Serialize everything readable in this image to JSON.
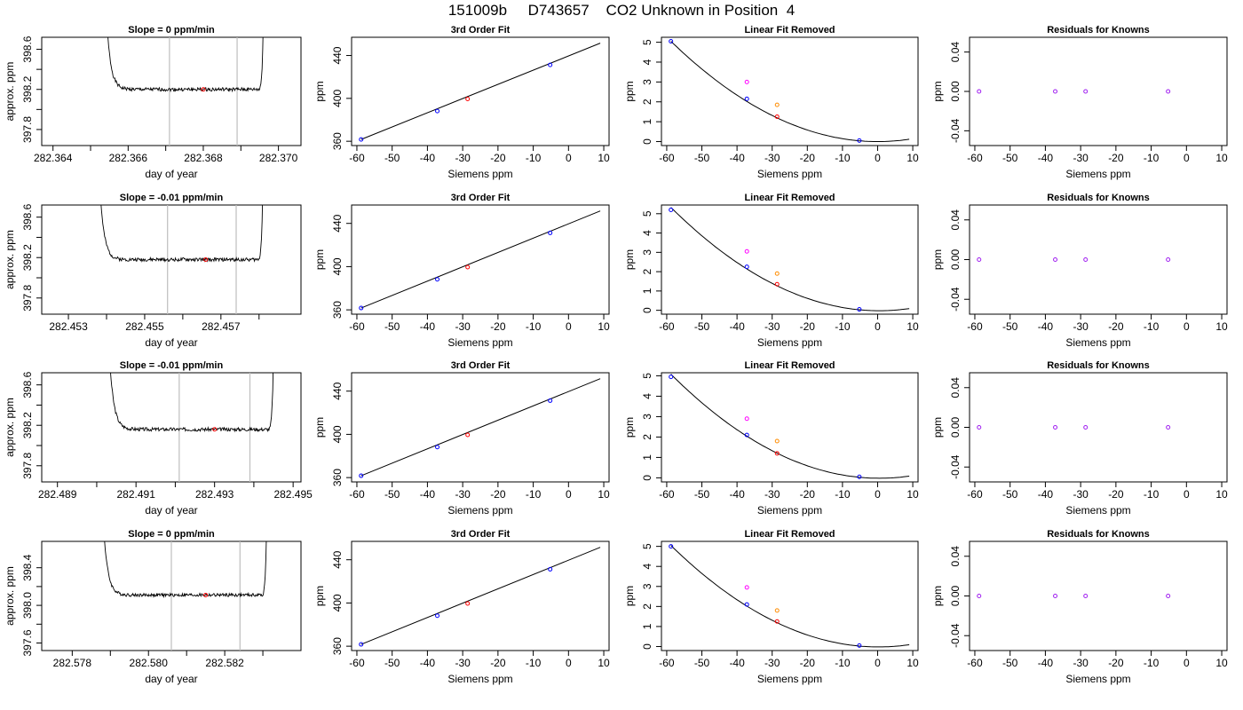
{
  "header": {
    "title": "151009b     D743657    CO2 Unknown in Position  4"
  },
  "colors": {
    "axis": "#000000",
    "vline": "#bebebe",
    "red": "#ff0000",
    "blue": "#0000ff",
    "magenta": "#ff00ff",
    "orange": "#ff8c00",
    "purple": "#a020f0"
  },
  "chart_data": [
    {
      "type": "line",
      "row": 0,
      "col": 0,
      "title": "Slope =  0  ppm/min",
      "xlabel": "day of year",
      "ylabel": "approx. ppm",
      "xlim": [
        282.3637,
        282.3706
      ],
      "ylim": [
        397.64,
        398.72
      ],
      "xticks": [
        282.364,
        282.366,
        282.368,
        282.37
      ],
      "xtick_labels": [
        "282.364",
        "282.366",
        "282.368",
        "282.370"
      ],
      "yticks": [
        397.8,
        398.2,
        398.6
      ],
      "ytick_labels": [
        "397.8",
        "398.2",
        "398.6"
      ],
      "vlines": [
        282.3671,
        282.3689
      ],
      "base": 398.2,
      "left_edge": 282.3654,
      "right_edge": 282.3696,
      "seed": 1,
      "marker": {
        "x": 282.368,
        "y": 398.2
      }
    },
    {
      "type": "line",
      "row": 0,
      "col": 1,
      "title": "3rd Order Fit",
      "xlabel": "Siemens ppm",
      "ylabel": "ppm",
      "xlim": [
        -61.5,
        11.5
      ],
      "ylim": [
        356,
        457
      ],
      "xticks": [
        -60,
        -50,
        -40,
        -30,
        -20,
        -10,
        0,
        10
      ],
      "xtick_labels": [
        "-60",
        "-50",
        "-40",
        "-30",
        "-20",
        "-10",
        "0",
        "10"
      ],
      "yticks": [
        360,
        400,
        440
      ],
      "ytick_labels": [
        "360",
        "400",
        "440"
      ],
      "points": [
        {
          "x": -58.8,
          "y": 361.7,
          "c": "blue"
        },
        {
          "x": -37.2,
          "y": 388.2,
          "c": "blue"
        },
        {
          "x": -28.6,
          "y": 399.5,
          "c": "red"
        },
        {
          "x": -5.2,
          "y": 431.2,
          "c": "blue"
        }
      ],
      "curve": {
        "x0": -58.8,
        "y0": 361.7,
        "x1": 9,
        "y1": 451.5
      }
    },
    {
      "type": "scatter",
      "row": 0,
      "col": 2,
      "title": "Linear Fit Removed",
      "xlabel": "Siemens ppm",
      "ylabel": "ppm",
      "xlim": [
        -61.5,
        11.5
      ],
      "ylim": [
        -0.2,
        5.25
      ],
      "xticks": [
        -60,
        -50,
        -40,
        -30,
        -20,
        -10,
        0,
        10
      ],
      "xtick_labels": [
        "-60",
        "-50",
        "-40",
        "-30",
        "-20",
        "-10",
        "0",
        "10"
      ],
      "yticks": [
        0,
        1,
        2,
        3,
        4,
        5
      ],
      "ytick_labels": [
        "0",
        "1",
        "2",
        "3",
        "4",
        "5"
      ],
      "points": [
        {
          "x": -58.8,
          "y": 5.05,
          "c": "blue"
        },
        {
          "x": -37.2,
          "y": 2.15,
          "c": "blue"
        },
        {
          "x": -28.6,
          "y": 1.25,
          "c": "red"
        },
        {
          "x": -5.2,
          "y": 0.05,
          "c": "blue"
        },
        {
          "x": -37.2,
          "y": 3.0,
          "c": "magenta"
        },
        {
          "x": -28.6,
          "y": 1.85,
          "c": "orange"
        }
      ],
      "parabola": {
        "vertex_x": 0,
        "vertex_y": 0.0,
        "a": 0.00146,
        "from": -58.8,
        "to": 9
      }
    },
    {
      "type": "scatter",
      "row": 0,
      "col": 3,
      "title": "Residuals for Knowns",
      "xlabel": "Siemens ppm",
      "ylabel": "ppm",
      "xlim": [
        -61.5,
        11.5
      ],
      "ylim": [
        -0.055,
        0.055
      ],
      "xticks": [
        -60,
        -50,
        -40,
        -30,
        -20,
        -10,
        0,
        10
      ],
      "xtick_labels": [
        "-60",
        "-50",
        "-40",
        "-30",
        "-20",
        "-10",
        "0",
        "10"
      ],
      "yticks": [
        -0.04,
        0.0,
        0.04
      ],
      "ytick_labels": [
        "-0.04",
        "0.00",
        "0.04"
      ],
      "points": [
        {
          "x": -58.8,
          "y": 0,
          "c": "purple"
        },
        {
          "x": -37.2,
          "y": 0,
          "c": "purple"
        },
        {
          "x": -28.6,
          "y": 0,
          "c": "purple"
        },
        {
          "x": -5.2,
          "y": 0,
          "c": "purple"
        }
      ]
    },
    {
      "type": "line",
      "row": 1,
      "col": 0,
      "title": "Slope =  -0.01  ppm/min",
      "xlabel": "day of year",
      "ylabel": "approx. ppm",
      "xlim": [
        282.4523,
        282.4591
      ],
      "ylim": [
        397.64,
        398.72
      ],
      "xticks": [
        282.453,
        282.455,
        282.457
      ],
      "xtick_labels": [
        "282.453",
        "282.455",
        "282.457"
      ],
      "yticks": [
        397.8,
        398.2,
        398.6
      ],
      "ytick_labels": [
        "397.8",
        "398.2",
        "398.6"
      ],
      "vlines": [
        282.4556,
        282.4574
      ],
      "base": 398.18,
      "left_edge": 282.4538,
      "right_edge": 282.4581,
      "seed": 2,
      "marker": {
        "x": 282.4566,
        "y": 398.18
      }
    },
    {
      "type": "line",
      "row": 1,
      "col": 1,
      "title": "3rd Order Fit",
      "xlabel": "Siemens ppm",
      "ylabel": "ppm",
      "xlim": [
        -61.5,
        11.5
      ],
      "ylim": [
        356,
        457
      ],
      "xticks": [
        -60,
        -50,
        -40,
        -30,
        -20,
        -10,
        0,
        10
      ],
      "xtick_labels": [
        "-60",
        "-50",
        "-40",
        "-30",
        "-20",
        "-10",
        "0",
        "10"
      ],
      "yticks": [
        360,
        400,
        440
      ],
      "ytick_labels": [
        "360",
        "400",
        "440"
      ],
      "points": [
        {
          "x": -58.8,
          "y": 361.7,
          "c": "blue"
        },
        {
          "x": -37.2,
          "y": 388.2,
          "c": "blue"
        },
        {
          "x": -28.6,
          "y": 399.5,
          "c": "red"
        },
        {
          "x": -5.2,
          "y": 431.2,
          "c": "blue"
        }
      ],
      "curve": {
        "x0": -58.8,
        "y0": 361.7,
        "x1": 9,
        "y1": 451.5
      }
    },
    {
      "type": "scatter",
      "row": 1,
      "col": 2,
      "title": "Linear Fit Removed",
      "xlabel": "Siemens ppm",
      "ylabel": "ppm",
      "xlim": [
        -61.5,
        11.5
      ],
      "ylim": [
        -0.2,
        5.45
      ],
      "xticks": [
        -60,
        -50,
        -40,
        -30,
        -20,
        -10,
        0,
        10
      ],
      "xtick_labels": [
        "-60",
        "-50",
        "-40",
        "-30",
        "-20",
        "-10",
        "0",
        "10"
      ],
      "yticks": [
        0,
        1,
        2,
        3,
        4,
        5
      ],
      "ytick_labels": [
        "0",
        "1",
        "2",
        "3",
        "4",
        "5"
      ],
      "points": [
        {
          "x": -58.8,
          "y": 5.2,
          "c": "blue"
        },
        {
          "x": -37.2,
          "y": 2.25,
          "c": "blue"
        },
        {
          "x": -28.6,
          "y": 1.35,
          "c": "red"
        },
        {
          "x": -5.2,
          "y": 0.05,
          "c": "blue"
        },
        {
          "x": -37.2,
          "y": 3.05,
          "c": "magenta"
        },
        {
          "x": -28.6,
          "y": 1.9,
          "c": "orange"
        }
      ],
      "parabola": {
        "vertex_x": 0.5,
        "vertex_y": -0.02,
        "a": 0.00152,
        "from": -58.8,
        "to": 9
      }
    },
    {
      "type": "scatter",
      "row": 1,
      "col": 3,
      "title": "Residuals for Knowns",
      "xlabel": "Siemens ppm",
      "ylabel": "ppm",
      "xlim": [
        -61.5,
        11.5
      ],
      "ylim": [
        -0.055,
        0.055
      ],
      "xticks": [
        -60,
        -50,
        -40,
        -30,
        -20,
        -10,
        0,
        10
      ],
      "xtick_labels": [
        "-60",
        "-50",
        "-40",
        "-30",
        "-20",
        "-10",
        "0",
        "10"
      ],
      "yticks": [
        -0.04,
        0.0,
        0.04
      ],
      "ytick_labels": [
        "-0.04",
        "0.00",
        "0.04"
      ],
      "points": [
        {
          "x": -58.8,
          "y": 0,
          "c": "purple"
        },
        {
          "x": -37.2,
          "y": 0,
          "c": "purple"
        },
        {
          "x": -28.6,
          "y": 0,
          "c": "purple"
        },
        {
          "x": -5.2,
          "y": 0,
          "c": "purple"
        }
      ]
    },
    {
      "type": "line",
      "row": 2,
      "col": 0,
      "title": "Slope =  -0.01  ppm/min",
      "xlabel": "day of year",
      "ylabel": "approx. ppm",
      "xlim": [
        282.4886,
        282.4952
      ],
      "ylim": [
        397.64,
        398.72
      ],
      "xticks": [
        282.489,
        282.491,
        282.493,
        282.495
      ],
      "xtick_labels": [
        "282.489",
        "282.491",
        "282.493",
        "282.495"
      ],
      "yticks": [
        397.8,
        398.2,
        398.6
      ],
      "ytick_labels": [
        "397.8",
        "398.2",
        "398.6"
      ],
      "vlines": [
        282.4921,
        282.4939
      ],
      "base": 398.16,
      "left_edge": 282.4903,
      "right_edge": 282.4945,
      "seed": 3,
      "marker": {
        "x": 282.493,
        "y": 398.16
      }
    },
    {
      "type": "line",
      "row": 2,
      "col": 1,
      "title": "3rd Order Fit",
      "xlabel": "Siemens ppm",
      "ylabel": "ppm",
      "xlim": [
        -61.5,
        11.5
      ],
      "ylim": [
        356,
        457
      ],
      "xticks": [
        -60,
        -50,
        -40,
        -30,
        -20,
        -10,
        0,
        10
      ],
      "xtick_labels": [
        "-60",
        "-50",
        "-40",
        "-30",
        "-20",
        "-10",
        "0",
        "10"
      ],
      "yticks": [
        360,
        400,
        440
      ],
      "ytick_labels": [
        "360",
        "400",
        "440"
      ],
      "points": [
        {
          "x": -58.8,
          "y": 361.7,
          "c": "blue"
        },
        {
          "x": -37.2,
          "y": 388.2,
          "c": "blue"
        },
        {
          "x": -28.6,
          "y": 399.5,
          "c": "red"
        },
        {
          "x": -5.2,
          "y": 431.2,
          "c": "blue"
        }
      ],
      "curve": {
        "x0": -58.8,
        "y0": 361.7,
        "x1": 9,
        "y1": 451.5
      }
    },
    {
      "type": "scatter",
      "row": 2,
      "col": 2,
      "title": "Linear Fit Removed",
      "xlabel": "Siemens ppm",
      "ylabel": "ppm",
      "xlim": [
        -61.5,
        11.5
      ],
      "ylim": [
        -0.2,
        5.15
      ],
      "xticks": [
        -60,
        -50,
        -40,
        -30,
        -20,
        -10,
        0,
        10
      ],
      "xtick_labels": [
        "-60",
        "-50",
        "-40",
        "-30",
        "-20",
        "-10",
        "0",
        "10"
      ],
      "yticks": [
        0,
        1,
        2,
        3,
        4,
        5
      ],
      "ytick_labels": [
        "0",
        "1",
        "2",
        "3",
        "4",
        "5"
      ],
      "points": [
        {
          "x": -58.8,
          "y": 4.95,
          "c": "blue"
        },
        {
          "x": -37.2,
          "y": 2.1,
          "c": "blue"
        },
        {
          "x": -28.6,
          "y": 1.2,
          "c": "red"
        },
        {
          "x": -5.2,
          "y": 0.05,
          "c": "blue"
        },
        {
          "x": -37.2,
          "y": 2.9,
          "c": "magenta"
        },
        {
          "x": -28.6,
          "y": 1.8,
          "c": "orange"
        }
      ],
      "parabola": {
        "vertex_x": 0.5,
        "vertex_y": -0.02,
        "a": 0.00145,
        "from": -58.8,
        "to": 9
      }
    },
    {
      "type": "scatter",
      "row": 2,
      "col": 3,
      "title": "Residuals for Knowns",
      "xlabel": "Siemens ppm",
      "ylabel": "ppm",
      "xlim": [
        -61.5,
        11.5
      ],
      "ylim": [
        -0.055,
        0.055
      ],
      "xticks": [
        -60,
        -50,
        -40,
        -30,
        -20,
        -10,
        0,
        10
      ],
      "xtick_labels": [
        "-60",
        "-50",
        "-40",
        "-30",
        "-20",
        "-10",
        "0",
        "10"
      ],
      "yticks": [
        -0.04,
        0.0,
        0.04
      ],
      "ytick_labels": [
        "-0.04",
        "0.00",
        "0.04"
      ],
      "points": [
        {
          "x": -58.8,
          "y": 0,
          "c": "purple"
        },
        {
          "x": -37.2,
          "y": 0,
          "c": "purple"
        },
        {
          "x": -28.6,
          "y": 0,
          "c": "purple"
        },
        {
          "x": -5.2,
          "y": 0,
          "c": "purple"
        }
      ]
    },
    {
      "type": "line",
      "row": 3,
      "col": 0,
      "title": "Slope =  0  ppm/min",
      "xlabel": "day of year",
      "ylabel": "approx. ppm",
      "xlim": [
        282.5772,
        282.584
      ],
      "ylim": [
        397.52,
        398.68
      ],
      "xticks": [
        282.578,
        282.58,
        282.582
      ],
      "xtick_labels": [
        "282.578",
        "282.580",
        "282.582"
      ],
      "yticks": [
        397.6,
        398.0,
        398.4
      ],
      "ytick_labels": [
        "397.6",
        "398.0",
        "398.4"
      ],
      "vlines": [
        282.5806,
        282.5824
      ],
      "base": 398.11,
      "left_edge": 282.5788,
      "right_edge": 282.5831,
      "seed": 4,
      "marker": {
        "x": 282.5815,
        "y": 398.11
      }
    },
    {
      "type": "line",
      "row": 3,
      "col": 1,
      "title": "3rd Order Fit",
      "xlabel": "Siemens ppm",
      "ylabel": "ppm",
      "xlim": [
        -61.5,
        11.5
      ],
      "ylim": [
        356,
        457
      ],
      "xticks": [
        -60,
        -50,
        -40,
        -30,
        -20,
        -10,
        0,
        10
      ],
      "xtick_labels": [
        "-60",
        "-50",
        "-40",
        "-30",
        "-20",
        "-10",
        "0",
        "10"
      ],
      "yticks": [
        360,
        400,
        440
      ],
      "ytick_labels": [
        "360",
        "400",
        "440"
      ],
      "points": [
        {
          "x": -58.8,
          "y": 361.7,
          "c": "blue"
        },
        {
          "x": -37.2,
          "y": 388.2,
          "c": "blue"
        },
        {
          "x": -28.6,
          "y": 399.5,
          "c": "red"
        },
        {
          "x": -5.2,
          "y": 431.2,
          "c": "blue"
        }
      ],
      "curve": {
        "x0": -58.8,
        "y0": 361.7,
        "x1": 9,
        "y1": 451.5
      }
    },
    {
      "type": "scatter",
      "row": 3,
      "col": 2,
      "title": "Linear Fit Removed",
      "xlabel": "Siemens ppm",
      "ylabel": "ppm",
      "xlim": [
        -61.5,
        11.5
      ],
      "ylim": [
        -0.2,
        5.25
      ],
      "xticks": [
        -60,
        -50,
        -40,
        -30,
        -20,
        -10,
        0,
        10
      ],
      "xtick_labels": [
        "-60",
        "-50",
        "-40",
        "-30",
        "-20",
        "-10",
        "0",
        "10"
      ],
      "yticks": [
        0,
        1,
        2,
        3,
        4,
        5
      ],
      "ytick_labels": [
        "0",
        "1",
        "2",
        "3",
        "4",
        "5"
      ],
      "points": [
        {
          "x": -58.8,
          "y": 5.0,
          "c": "blue"
        },
        {
          "x": -37.2,
          "y": 2.1,
          "c": "blue"
        },
        {
          "x": -28.6,
          "y": 1.25,
          "c": "red"
        },
        {
          "x": -5.2,
          "y": 0.05,
          "c": "blue"
        },
        {
          "x": -37.2,
          "y": 2.95,
          "c": "magenta"
        },
        {
          "x": -28.6,
          "y": 1.8,
          "c": "orange"
        }
      ],
      "parabola": {
        "vertex_x": 0.3,
        "vertex_y": -0.02,
        "a": 0.00145,
        "from": -58.8,
        "to": 9
      }
    },
    {
      "type": "scatter",
      "row": 3,
      "col": 3,
      "title": "Residuals for Knowns",
      "xlabel": "Siemens ppm",
      "ylabel": "ppm",
      "xlim": [
        -61.5,
        11.5
      ],
      "ylim": [
        -0.055,
        0.055
      ],
      "xticks": [
        -60,
        -50,
        -40,
        -30,
        -20,
        -10,
        0,
        10
      ],
      "xtick_labels": [
        "-60",
        "-50",
        "-40",
        "-30",
        "-20",
        "-10",
        "0",
        "10"
      ],
      "yticks": [
        -0.04,
        0.0,
        0.04
      ],
      "ytick_labels": [
        "-0.04",
        "0.00",
        "0.04"
      ],
      "points": [
        {
          "x": -58.8,
          "y": 0,
          "c": "purple"
        },
        {
          "x": -37.2,
          "y": 0,
          "c": "purple"
        },
        {
          "x": -28.6,
          "y": 0,
          "c": "purple"
        },
        {
          "x": -5.2,
          "y": 0,
          "c": "purple"
        }
      ]
    }
  ]
}
